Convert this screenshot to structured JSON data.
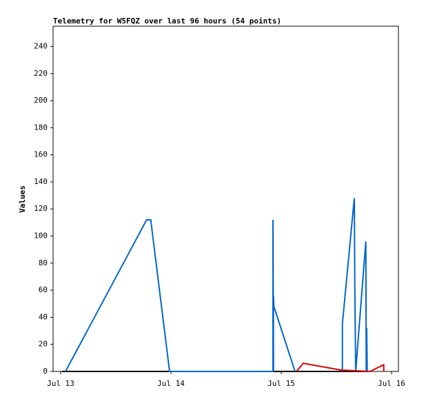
{
  "chart_data": {
    "type": "line",
    "title": "Telemetry for W5FQZ over last 96 hours (54 points)",
    "y_label": "Values",
    "xlim": [
      -1.65,
      73.5
    ],
    "xticks": [
      {
        "value": 0,
        "label": "Jul 13"
      },
      {
        "value": 24,
        "label": "Jul 14"
      },
      {
        "value": 48,
        "label": "Jul 15"
      },
      {
        "value": 72,
        "label": "Jul 16"
      }
    ],
    "ylim": [
      0,
      255
    ],
    "yticks": [
      0,
      20,
      40,
      60,
      80,
      100,
      120,
      140,
      160,
      180,
      200,
      220,
      240
    ],
    "series": [
      {
        "color": "#000000",
        "x": [
          0.3,
          67
        ],
        "values": [
          0,
          0
        ]
      },
      {
        "color": "#0066cc",
        "x": [
          1.05,
          18.7,
          19.6,
          23.7,
          46.2,
          46.2,
          46.3,
          46.3,
          46.4,
          51.0,
          56,
          61.3,
          61.3,
          63.9,
          64.0,
          64.2,
          66.4,
          66.5,
          66.6,
          66.7
        ],
        "values": [
          0,
          112,
          112,
          0,
          0,
          112,
          0,
          56,
          48,
          0,
          null,
          0,
          35,
          128,
          65,
          0,
          96,
          0,
          32,
          0
        ]
      },
      {
        "color": "#dd0000",
        "x": [
          51.3,
          52.8,
          61.0,
          67.3,
          70.3,
          70.3
        ],
        "values": [
          0,
          6,
          1,
          0,
          5,
          0
        ]
      }
    ]
  }
}
